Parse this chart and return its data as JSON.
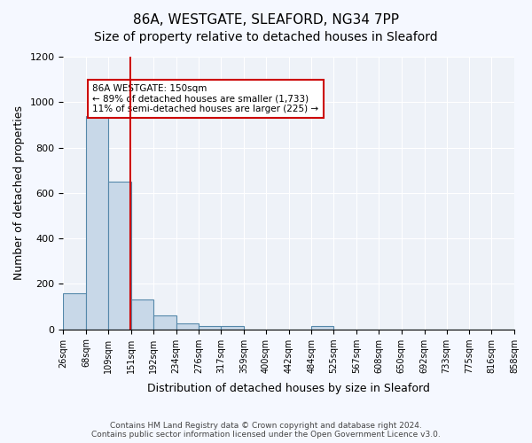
{
  "title": "86A, WESTGATE, SLEAFORD, NG34 7PP",
  "subtitle": "Size of property relative to detached houses in Sleaford",
  "xlabel": "Distribution of detached houses by size in Sleaford",
  "ylabel": "Number of detached properties",
  "bin_edges": [
    26,
    68,
    109,
    151,
    192,
    234,
    276,
    317,
    359,
    400,
    442,
    484,
    525,
    567,
    608,
    650,
    692,
    733,
    775,
    816,
    858
  ],
  "bin_labels": [
    "26sqm",
    "68sqm",
    "109sqm",
    "151sqm",
    "192sqm",
    "234sqm",
    "276sqm",
    "317sqm",
    "359sqm",
    "400sqm",
    "442sqm",
    "484sqm",
    "525sqm",
    "567sqm",
    "608sqm",
    "650sqm",
    "692sqm",
    "733sqm",
    "775sqm",
    "816sqm",
    "858sqm"
  ],
  "bar_heights": [
    160,
    940,
    650,
    130,
    60,
    27,
    13,
    13,
    0,
    0,
    0,
    13,
    0,
    0,
    0,
    0,
    0,
    0,
    0,
    0
  ],
  "bar_color": "#c8d8e8",
  "bar_edge_color": "#5588aa",
  "vline_x": 150,
  "vline_color": "#cc0000",
  "annotation_text": "86A WESTGATE: 150sqm\n← 89% of detached houses are smaller (1,733)\n11% of semi-detached houses are larger (225) →",
  "annotation_box_color": "#ffffff",
  "annotation_box_edge_color": "#cc0000",
  "ylim": [
    0,
    1200
  ],
  "yticks": [
    0,
    200,
    400,
    600,
    800,
    1000,
    1200
  ],
  "background_color": "#eef2f8",
  "footer_text": "Contains HM Land Registry data © Crown copyright and database right 2024.\nContains public sector information licensed under the Open Government Licence v3.0.",
  "title_fontsize": 11,
  "subtitle_fontsize": 10,
  "xlabel_fontsize": 9,
  "ylabel_fontsize": 9
}
